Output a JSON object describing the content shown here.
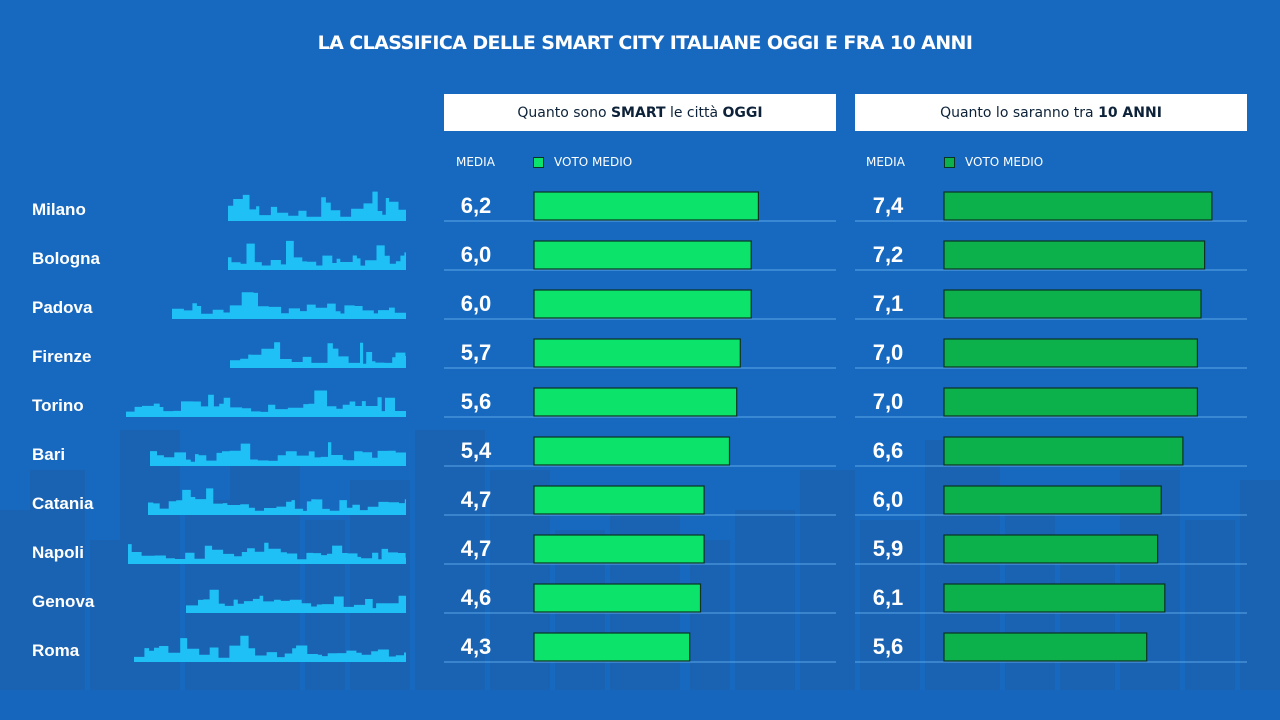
{
  "title": "LA CLASSIFICA DELLE SMART CITY ITALIANE OGGI E FRA 10 ANNI",
  "panels": {
    "today": {
      "header": {
        "pre": "Quanto sono ",
        "bold1": "SMART",
        "mid": " le città ",
        "bold2": "OGGI"
      },
      "media_label": "MEDIA",
      "legend_label": "VOTO MEDIO",
      "color": "#0be36a"
    },
    "future": {
      "header": {
        "pre": "Quanto lo saranno tra ",
        "bold1": "10 ANNI",
        "mid": "",
        "bold2": ""
      },
      "media_label": "MEDIA",
      "legend_label": "VOTO MEDIO",
      "color": "#0cb14b"
    }
  },
  "colors": {
    "background": "#1769c0",
    "skyline": "#1ec0f5",
    "row_line": "#5aa6e8",
    "bar_border": "#0b3322"
  },
  "chart_data": {
    "type": "bar",
    "orientation": "horizontal",
    "categories": [
      "Milano",
      "Bologna",
      "Padova",
      "Firenze",
      "Torino",
      "Bari",
      "Catania",
      "Napoli",
      "Genova",
      "Roma"
    ],
    "series": [
      {
        "name": "VOTO MEDIO",
        "values": [
          6.2,
          6.0,
          6.0,
          5.7,
          5.6,
          5.4,
          4.7,
          4.7,
          4.6,
          4.3
        ]
      },
      {
        "name": "VOTO MEDIO",
        "values": [
          7.4,
          7.2,
          7.1,
          7.0,
          7.0,
          6.6,
          6.0,
          5.9,
          6.1,
          5.6
        ]
      }
    ],
    "value_labels": [
      [
        "6,2",
        "6,0",
        "6,0",
        "5,7",
        "5,6",
        "5,4",
        "4,7",
        "4,7",
        "4,6",
        "4,3"
      ],
      [
        "7,4",
        "7,2",
        "7,1",
        "7,0",
        "7,0",
        "6,6",
        "6,0",
        "5,9",
        "6,1",
        "5,6"
      ]
    ],
    "xlim": [
      0,
      7.5
    ],
    "title": "LA CLASSIFICA DELLE SMART CITY ITALIANE OGGI E FRA 10 ANNI",
    "legend": "top"
  }
}
